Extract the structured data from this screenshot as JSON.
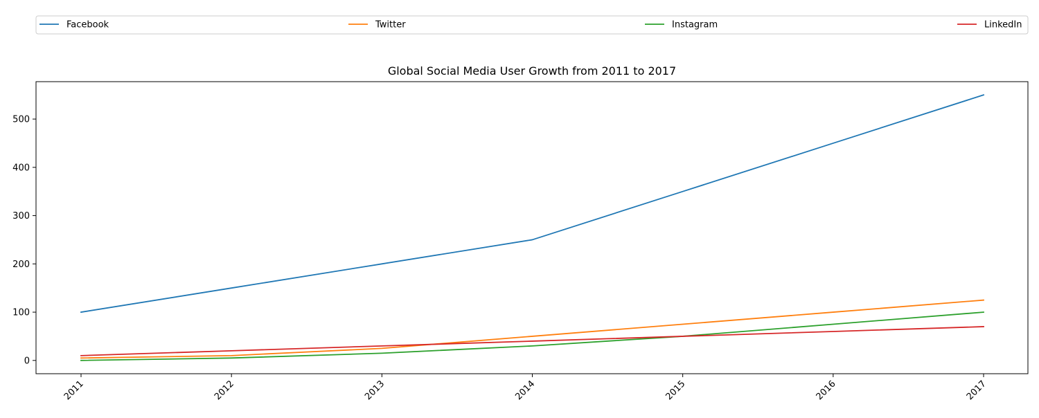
{
  "chart_data": {
    "type": "line",
    "title": "Global Social Media User Growth from 2011 to 2017",
    "xlabel": "",
    "ylabel": "",
    "categories": [
      "2011",
      "2012",
      "2013",
      "2014",
      "2015",
      "2016",
      "2017"
    ],
    "yticks": [
      0,
      100,
      200,
      300,
      400,
      500
    ],
    "ylim": [
      -27.5,
      577.5
    ],
    "grid": false,
    "legend_position": "top",
    "series": [
      {
        "name": "Facebook",
        "color": "#1f77b4",
        "values": [
          100,
          150,
          200,
          250,
          350,
          450,
          550
        ]
      },
      {
        "name": "Twitter",
        "color": "#ff7f0e",
        "values": [
          5,
          10,
          25,
          50,
          75,
          100,
          125
        ]
      },
      {
        "name": "Instagram",
        "color": "#2ca02c",
        "values": [
          0,
          5,
          15,
          30,
          50,
          75,
          100
        ]
      },
      {
        "name": "LinkedIn",
        "color": "#d62728",
        "values": [
          10,
          20,
          30,
          40,
          50,
          60,
          70
        ]
      }
    ]
  }
}
